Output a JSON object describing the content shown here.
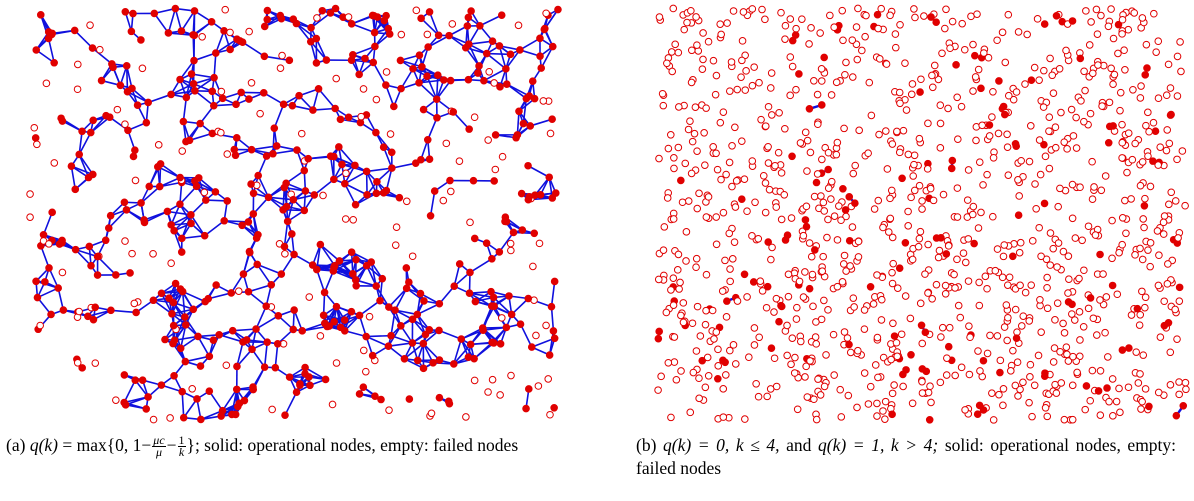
{
  "panels": [
    {
      "id": "a",
      "label": "(a)",
      "caption_math": {
        "lhs": "q(k)",
        "eq": "=",
        "func": "max",
        "open": "{0, 1−",
        "frac1_num": "μc",
        "frac1_den": "μ",
        "minus": "−",
        "frac2_num": "1",
        "frac2_den": "k",
        "close": "}"
      },
      "caption_text": "; solid: operational nodes, empty: failed nodes",
      "network": {
        "node_count": 620,
        "mostly_operational": true,
        "edge_color": "#1010dd",
        "node_color": "#e00000"
      }
    },
    {
      "id": "b",
      "label": "(b)",
      "caption_math": {
        "part1": "q(k) = 0, k ≤ 4,",
        "conj": "and",
        "part2": "q(k) = 1, k > 4;"
      },
      "caption_text": "solid: operational nodes, empty: failed nodes",
      "network": {
        "node_count": 1200,
        "mostly_operational": false,
        "edge_color": "#1010dd",
        "node_color": "#e00000"
      }
    }
  ],
  "legend": {
    "solid": "operational nodes",
    "empty": "failed nodes"
  },
  "colors": {
    "node": "#e00000",
    "edge": "#1010dd",
    "background": "#ffffff"
  }
}
